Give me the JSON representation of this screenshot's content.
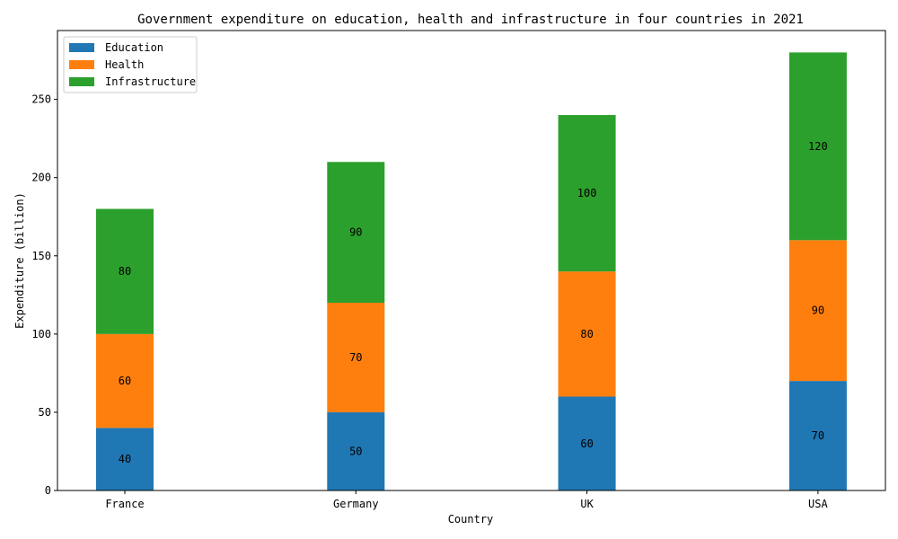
{
  "chart_data": {
    "type": "bar",
    "stacked": true,
    "title": "Government expenditure on education, health and infrastructure in four countries in 2021",
    "xlabel": "Country",
    "ylabel": "Expenditure (billion)",
    "categories": [
      "France",
      "Germany",
      "UK",
      "USA"
    ],
    "series": [
      {
        "name": "Education",
        "color": "#1f77b4",
        "values": [
          40,
          50,
          60,
          70
        ]
      },
      {
        "name": "Health",
        "color": "#ff7f0e",
        "values": [
          60,
          70,
          80,
          90
        ]
      },
      {
        "name": "Infrastructure",
        "color": "#2ca02c",
        "values": [
          80,
          90,
          100,
          120
        ]
      }
    ],
    "ylim": [
      0,
      294
    ],
    "yticks": [
      0,
      50,
      100,
      150,
      200,
      250
    ],
    "legend": "top-left",
    "grid": false
  }
}
